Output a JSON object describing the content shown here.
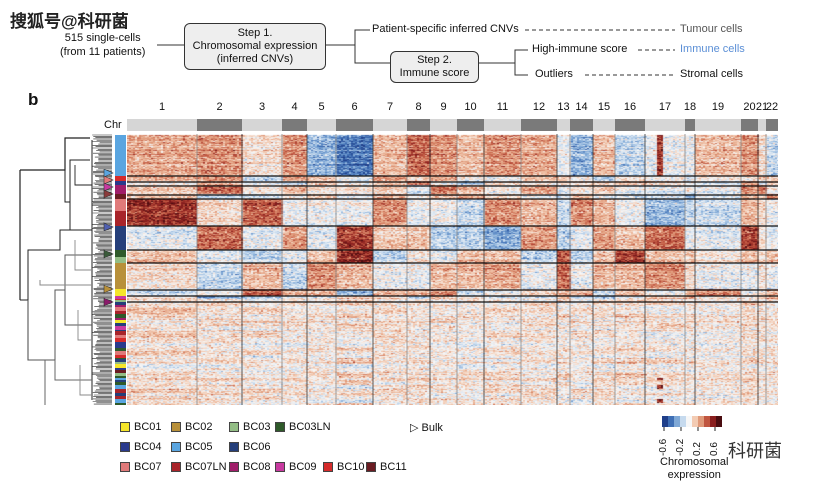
{
  "watermark_top": "搜狐号@科研菌",
  "watermark_bottom": "科研菌",
  "flow": {
    "input": [
      "515 single-cells",
      "(from 11 patients)"
    ],
    "step1": [
      "Step 1.",
      "Chromosomal expression",
      "(inferred CNVs)"
    ],
    "step2": [
      "Step 2.",
      "Immune score"
    ],
    "branch_cnv": "Patient-specific inferred CNVs",
    "branch_high": "High-immune score",
    "branch_outliers": "Outliers",
    "out_tumour": "Tumour cells",
    "out_immune": "Immune cells",
    "out_stromal": "Stromal cells",
    "immune_color": "#5b8fd6"
  },
  "panel_label": "b",
  "chart_data": {
    "type": "heatmap",
    "row_annotation_label": "Chr",
    "chromosomes": [
      "1",
      "2",
      "3",
      "4",
      "5",
      "6",
      "7",
      "8",
      "9",
      "10",
      "11",
      "12",
      "13",
      "14",
      "15",
      "16",
      "17",
      "18",
      "19",
      "20",
      "21",
      "22"
    ],
    "colorbar": {
      "title": [
        "Chromosomal",
        "expression"
      ],
      "ticks": [
        "-0.6",
        "-0.2",
        "0.2",
        "0.6"
      ],
      "range": [
        -0.6,
        0.6
      ],
      "colors": [
        "#1f3f8a",
        "#3f6fb5",
        "#7fa8d6",
        "#c6daee",
        "#f7f7f7",
        "#f3cbb3",
        "#e09a7a",
        "#c0553f",
        "#8a1e1e",
        "#4a0c10"
      ]
    },
    "legend": [
      {
        "label": "BC01",
        "color": "#f5e52a"
      },
      {
        "label": "BC02",
        "color": "#b8903a"
      },
      {
        "label": "BC03",
        "color": "#93bd85"
      },
      {
        "label": "BC03LN",
        "color": "#2f5a2a"
      },
      {
        "label": "BC04",
        "color": "#2a3a8c"
      },
      {
        "label": "BC05",
        "color": "#5aa5e0"
      },
      {
        "label": "BC06",
        "color": "#253f7a"
      },
      {
        "label": "BC07",
        "color": "#e07a7a"
      },
      {
        "label": "BC07LN",
        "color": "#a8242a"
      },
      {
        "label": "BC08",
        "color": "#a01e6a"
      },
      {
        "label": "BC09",
        "color": "#c83aa0"
      },
      {
        "label": "BC10",
        "color": "#d52b2b"
      },
      {
        "label": "BC11",
        "color": "#6a1c22"
      }
    ],
    "bulk_label": "▷ Bulk",
    "group_profiles": {
      "BC05": [
        0.15,
        0.2,
        0,
        0.2,
        -0.3,
        -0.45,
        0.1,
        0.3,
        0.2,
        0.1,
        0.2,
        0.15,
        -0.1,
        -0.3,
        0.1,
        -0.2,
        -0.1,
        -0.1,
        0.1,
        0.2,
        0,
        -0.2
      ],
      "BC07": [
        0.4,
        0,
        0.3,
        -0.1,
        -0.1,
        -0.1,
        0.2,
        -0.1,
        -0.1,
        -0.2,
        0.2,
        0.1,
        -0.2,
        0.2,
        0.1,
        -0.1,
        -0.3,
        -0.2,
        -0.2,
        0.1,
        0,
        -0.1
      ],
      "BC06": [
        -0.1,
        0.3,
        -0.1,
        0.2,
        -0.1,
        0.4,
        0.1,
        0.1,
        -0.2,
        -0.2,
        -0.3,
        0.2,
        -0.2,
        -0.1,
        0.2,
        0.1,
        0.3,
        -0.1,
        -0.1,
        0.4,
        0,
        -0.1
      ],
      "BC02": [
        0,
        -0.2,
        0.1,
        -0.2,
        0.2,
        0.1,
        -0.1,
        -0.1,
        0.1,
        0.1,
        0.15,
        -0.1,
        0.3,
        -0.1,
        0.1,
        0.1,
        0.2,
        0,
        -0.1,
        -0.1,
        0,
        -0.1
      ],
      "BC03": [
        0.1,
        -0.1,
        -0.2,
        -0.1,
        0.1,
        0.45,
        -0.2,
        0,
        -0.1,
        0.1,
        0.1,
        -0.2,
        0.35,
        -0.2,
        0.1,
        0.4,
        0.1,
        0.1,
        0,
        0.1,
        0,
        0.1
      ],
      "BC01": [
        -0.2,
        -0.1,
        0.3,
        0.1,
        0.1,
        -0.3,
        0.1,
        0.1,
        0.2,
        -0.2,
        -0.1,
        0,
        0.1,
        0.1,
        -0.2,
        0.1,
        -0.1,
        0.1,
        0.2,
        -0.1,
        0,
        0.1
      ]
    }
  }
}
